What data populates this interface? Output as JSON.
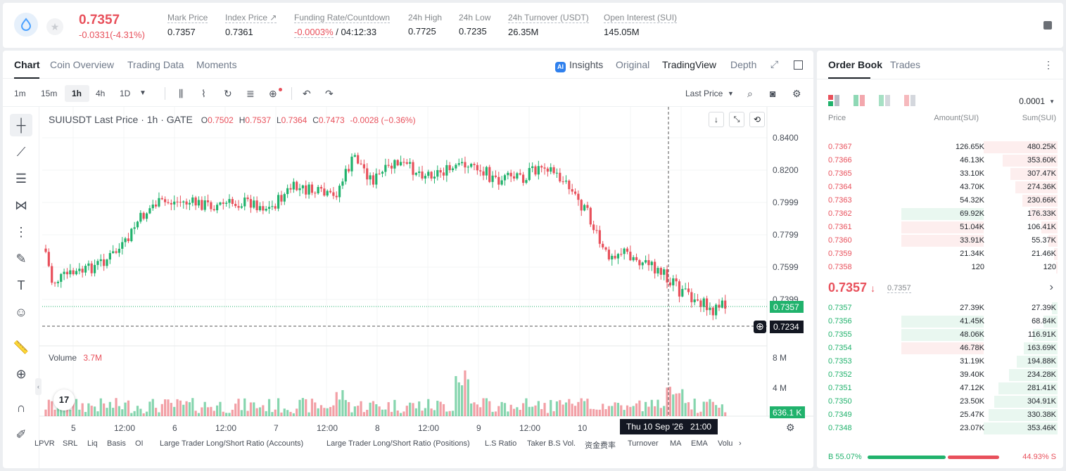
{
  "header": {
    "last_price": "0.7357",
    "change": "-0.0331(-4.31%)",
    "stats": [
      {
        "label": "Mark Price",
        "value": "0.7357"
      },
      {
        "label": "Index Price ↗",
        "value": "0.7361"
      },
      {
        "label": "Funding Rate/Countdown",
        "value_a": "-0.0003%",
        "value_b": " / 04:12:33"
      },
      {
        "label": "24h High",
        "value": "0.7725"
      },
      {
        "label": "24h Low",
        "value": "0.7235"
      },
      {
        "label": "24h Turnover (USDT)",
        "value": "26.35M"
      },
      {
        "label": "Open Interest (SUI)",
        "value": "145.05M"
      }
    ]
  },
  "chart_tabs": [
    "Chart",
    "Coin Overview",
    "Trading Data",
    "Moments"
  ],
  "view_tabs": {
    "insights": "Insights",
    "original": "Original",
    "tradingview": "TradingView",
    "depth": "Depth"
  },
  "ai_badge": "AI",
  "intervals": [
    "1m",
    "15m",
    "1h",
    "4h",
    "1D"
  ],
  "price_type": "Last Price",
  "legend": {
    "symbol": "SUIUSDT Last Price · 1h · GATE",
    "o_label": "O",
    "o": "0.7502",
    "h_label": "H",
    "h": "0.7537",
    "l_label": "L",
    "l": "0.7364",
    "c_label": "C",
    "c": "0.7473",
    "chg": "-0.0028 (−0.36%)"
  },
  "volume_label": "Volume",
  "volume_value": "3.7M",
  "price_axis": [
    "0.8400",
    "0.8200",
    "0.7999",
    "0.7799",
    "0.7599",
    "0.7399"
  ],
  "price_tag": "0.7357",
  "cross_tag": "0.7234",
  "vol_axis": [
    "8 M",
    "4 M"
  ],
  "vol_tag": "636.1 K",
  "time_axis": [
    "5",
    "12:00",
    "6",
    "12:00",
    "7",
    "12:00",
    "8",
    "12:00",
    "9",
    "12:00",
    "10",
    "12:00"
  ],
  "time_tag": "Thu 10 Sep '26   21:00",
  "tv_logo": "17",
  "indicators": [
    "LPVR",
    "SRL",
    "Liq",
    "Basis",
    "OI",
    "Large Trader Long/Short Ratio (Accounts)",
    "Large Trader Long/Short Ratio (Positions)",
    "L.S Ratio",
    "Taker B.S Vol.",
    "资金费率",
    "Turnover",
    "MA",
    "EMA",
    "Volu"
  ],
  "orderbook": {
    "tabs": [
      "Order Book",
      "Trades"
    ],
    "precision": "0.0001",
    "headers": {
      "price": "Price",
      "amount": "Amount(SUI)",
      "sum": "Sum(SUI)"
    },
    "asks": [
      {
        "price": "0.7367",
        "amount": "126.65K",
        "sum": "480.25K",
        "depth": 1.0
      },
      {
        "price": "0.7366",
        "amount": "46.13K",
        "sum": "353.60K",
        "depth": 0.74
      },
      {
        "price": "0.7365",
        "amount": "33.10K",
        "sum": "307.47K",
        "depth": 0.64
      },
      {
        "price": "0.7364",
        "amount": "43.70K",
        "sum": "274.36K",
        "depth": 0.57
      },
      {
        "price": "0.7363",
        "amount": "54.32K",
        "sum": "230.66K",
        "depth": 0.48
      },
      {
        "price": "0.7362",
        "amount": "69.92K",
        "sum": "176.33K",
        "depth": 0.37
      },
      {
        "price": "0.7361",
        "amount": "51.04K",
        "sum": "106.41K",
        "depth": 0.22
      },
      {
        "price": "0.7360",
        "amount": "33.91K",
        "sum": "55.37K",
        "depth": 0.12
      },
      {
        "price": "0.7359",
        "amount": "21.34K",
        "sum": "21.46K",
        "depth": 0.045
      },
      {
        "price": "0.7358",
        "amount": "120",
        "sum": "120",
        "depth": 0.0
      }
    ],
    "mid_price": "0.7357",
    "mid_arrow": "↓",
    "mark": "0.7357",
    "bids": [
      {
        "price": "0.7357",
        "amount": "27.39K",
        "sum": "27.39K",
        "depth": 0.08
      },
      {
        "price": "0.7356",
        "amount": "41.45K",
        "sum": "68.84K",
        "depth": 0.19
      },
      {
        "price": "0.7355",
        "amount": "48.06K",
        "sum": "116.91K",
        "depth": 0.33
      },
      {
        "price": "0.7354",
        "amount": "46.78K",
        "sum": "163.69K",
        "depth": 0.46
      },
      {
        "price": "0.7353",
        "amount": "31.19K",
        "sum": "194.88K",
        "depth": 0.55
      },
      {
        "price": "0.7352",
        "amount": "39.40K",
        "sum": "234.28K",
        "depth": 0.66
      },
      {
        "price": "0.7351",
        "amount": "47.12K",
        "sum": "281.41K",
        "depth": 0.8
      },
      {
        "price": "0.7350",
        "amount": "23.50K",
        "sum": "304.91K",
        "depth": 0.86
      },
      {
        "price": "0.7349",
        "amount": "25.47K",
        "sum": "330.38K",
        "depth": 0.93
      },
      {
        "price": "0.7348",
        "amount": "23.07K",
        "sum": "353.46K",
        "depth": 1.0
      }
    ],
    "buy_ratio": "B 55.07%",
    "sell_ratio": "44.93% S",
    "buy_fraction": 0.5507
  },
  "colors": {
    "up": "#20b26c",
    "down": "#e8505b",
    "up_bg": "#e9f7f0",
    "down_bg": "#fdeeee"
  }
}
